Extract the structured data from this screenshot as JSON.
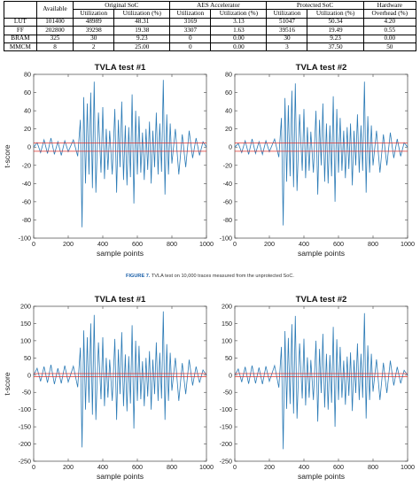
{
  "table": {
    "headers": {
      "available": "Available",
      "original": "Original SoC",
      "aes": "AES Accelerator",
      "protected": "Protected SoC",
      "hw_line1": "Hardware",
      "hw_line2": "Overhead (%)",
      "util": "Utilization",
      "util_pct": "Utilization (%)"
    },
    "rows": [
      {
        "label": "LUT",
        "cells": [
          "101400",
          "48989",
          "48.31",
          "3169",
          "3.13",
          "51047",
          "50.34",
          "4.20"
        ]
      },
      {
        "label": "FF",
        "cells": [
          "202800",
          "39298",
          "19.38",
          "3307",
          "1.63",
          "39516",
          "19.49",
          "0.55"
        ]
      },
      {
        "label": "BRAM",
        "cells": [
          "325",
          "30",
          "9.23",
          "0",
          "0.00",
          "30",
          "9.23",
          "0.00"
        ]
      },
      {
        "label": "MMCM",
        "cells": [
          "8",
          "2",
          "25.00",
          "0",
          "0.00",
          "3",
          "37.50",
          "50"
        ]
      }
    ]
  },
  "figure7": {
    "caption_label": "FIGURE 7.",
    "caption_text": "TVLA test on 10,000 traces measured from the unprotected SoC."
  },
  "colors": {
    "trace": "#2c7bb6",
    "threshold": "#e0302a"
  },
  "chart_data": [
    {
      "type": "line",
      "title": "TVLA test #1",
      "xlabel": "sample points",
      "ylabel": "t-score",
      "xlim": [
        0,
        1000
      ],
      "ylim": [
        -100,
        80
      ],
      "xticks": [
        0,
        200,
        400,
        600,
        800,
        1000
      ],
      "yticks": [
        80,
        60,
        40,
        20,
        0,
        -20,
        -40,
        -60,
        -80,
        -100
      ],
      "thresholds": [
        4.5,
        -4.5
      ],
      "series": [
        {
          "x": [
            0,
            20,
            40,
            60,
            80,
            100,
            120,
            140,
            160,
            180,
            200,
            230,
            255,
            270,
            280,
            290,
            300,
            310,
            320,
            330,
            340,
            350,
            360,
            375,
            390,
            400,
            410,
            420,
            430,
            440,
            455,
            470,
            480,
            490,
            500,
            510,
            520,
            530,
            540,
            550,
            560,
            570,
            580,
            590,
            600,
            610,
            620,
            630,
            640,
            650,
            660,
            670,
            680,
            690,
            700,
            710,
            720,
            730,
            740,
            750,
            760,
            770,
            780,
            790,
            800,
            820,
            840,
            860,
            880,
            900,
            920,
            940,
            960,
            980,
            1000
          ],
          "y": [
            0,
            5,
            -6,
            8,
            -7,
            10,
            -8,
            6,
            -9,
            7,
            -5,
            8,
            -10,
            30,
            -88,
            55,
            -40,
            48,
            -30,
            60,
            -45,
            72,
            -50,
            38,
            -28,
            44,
            -35,
            20,
            -25,
            18,
            -30,
            42,
            -50,
            30,
            -22,
            50,
            -36,
            24,
            -42,
            22,
            -33,
            58,
            -62,
            40,
            -30,
            34,
            -28,
            16,
            -36,
            20,
            -25,
            28,
            -40,
            18,
            -22,
            38,
            -30,
            26,
            -27,
            74,
            -52,
            36,
            -30,
            26,
            -18,
            20,
            -30,
            14,
            -22,
            18,
            -12,
            10,
            -9,
            6,
            0
          ]
        }
      ]
    },
    {
      "type": "line",
      "title": "TVLA test #2",
      "xlabel": "sample points",
      "ylabel": "",
      "xlim": [
        0,
        1000
      ],
      "ylim": [
        -100,
        80
      ],
      "xticks": [
        0,
        200,
        400,
        600,
        800,
        1000
      ],
      "yticks": [
        80,
        60,
        40,
        20,
        0,
        -20,
        -40,
        -60,
        -80,
        -100
      ],
      "thresholds": [
        4.5,
        -4.5
      ],
      "series": [
        {
          "x": [
            0,
            20,
            40,
            60,
            80,
            100,
            120,
            140,
            160,
            180,
            200,
            230,
            255,
            270,
            280,
            290,
            300,
            310,
            320,
            330,
            340,
            350,
            360,
            375,
            390,
            400,
            410,
            420,
            430,
            440,
            455,
            470,
            480,
            490,
            500,
            510,
            520,
            530,
            540,
            550,
            560,
            570,
            580,
            590,
            600,
            610,
            620,
            630,
            640,
            650,
            660,
            670,
            680,
            690,
            700,
            710,
            720,
            730,
            740,
            750,
            760,
            770,
            780,
            790,
            800,
            820,
            840,
            860,
            880,
            900,
            920,
            940,
            960,
            980,
            1000
          ],
          "y": [
            0,
            4,
            -6,
            7,
            -8,
            9,
            -7,
            6,
            -8,
            7,
            -5,
            9,
            -11,
            32,
            -86,
            54,
            -38,
            46,
            -32,
            62,
            -44,
            70,
            -48,
            36,
            -26,
            42,
            -34,
            22,
            -26,
            17,
            -28,
            40,
            -52,
            30,
            -20,
            48,
            -38,
            26,
            -40,
            24,
            -32,
            56,
            -60,
            42,
            -28,
            32,
            -26,
            18,
            -34,
            22,
            -24,
            26,
            -42,
            18,
            -20,
            36,
            -28,
            24,
            -26,
            72,
            -50,
            34,
            -28,
            24,
            -20,
            18,
            -28,
            14,
            -20,
            16,
            -12,
            9,
            -10,
            5,
            0
          ]
        }
      ]
    },
    {
      "type": "line",
      "title": "TVLA test #1",
      "xlabel": "sample points",
      "ylabel": "t-score",
      "xlim": [
        0,
        1000
      ],
      "ylim": [
        -250,
        200
      ],
      "xticks": [
        0,
        200,
        400,
        600,
        800,
        1000
      ],
      "yticks": [
        200,
        150,
        100,
        50,
        0,
        -50,
        -100,
        -150,
        -200,
        -250
      ],
      "thresholds": [
        4.5,
        -4.5
      ],
      "series": [
        {
          "x": [
            0,
            20,
            40,
            60,
            80,
            100,
            120,
            140,
            160,
            180,
            200,
            230,
            255,
            270,
            280,
            290,
            300,
            310,
            320,
            330,
            340,
            350,
            360,
            375,
            390,
            400,
            410,
            420,
            430,
            440,
            455,
            470,
            480,
            490,
            500,
            510,
            520,
            530,
            540,
            550,
            560,
            570,
            580,
            590,
            600,
            610,
            620,
            630,
            640,
            650,
            660,
            670,
            680,
            690,
            700,
            710,
            720,
            730,
            740,
            750,
            760,
            770,
            780,
            790,
            800,
            820,
            840,
            860,
            880,
            900,
            920,
            940,
            960,
            980,
            1000
          ],
          "y": [
            0,
            20,
            -18,
            25,
            -22,
            30,
            -26,
            20,
            -24,
            28,
            -20,
            26,
            -35,
            80,
            -210,
            130,
            -100,
            110,
            -80,
            150,
            -115,
            175,
            -130,
            95,
            -70,
            110,
            -90,
            50,
            -65,
            45,
            -75,
            105,
            -130,
            75,
            -55,
            125,
            -90,
            60,
            -105,
            55,
            -82,
            145,
            -155,
            100,
            -75,
            85,
            -70,
            40,
            -90,
            50,
            -62,
            70,
            -100,
            45,
            -55,
            95,
            -75,
            65,
            -68,
            185,
            -130,
            90,
            -75,
            65,
            -45,
            50,
            -75,
            35,
            -55,
            45,
            -30,
            25,
            -22,
            15,
            0
          ]
        }
      ]
    },
    {
      "type": "line",
      "title": "TVLA test #2",
      "xlabel": "sample points",
      "ylabel": "",
      "xlim": [
        0,
        1000
      ],
      "ylim": [
        -250,
        200
      ],
      "xticks": [
        0,
        200,
        400,
        600,
        800,
        1000
      ],
      "yticks": [
        200,
        150,
        100,
        50,
        0,
        -50,
        -100,
        -150,
        -200,
        -250
      ],
      "thresholds": [
        4.5,
        -4.5
      ],
      "series": [
        {
          "x": [
            0,
            20,
            40,
            60,
            80,
            100,
            120,
            140,
            160,
            180,
            200,
            230,
            255,
            270,
            280,
            290,
            300,
            310,
            320,
            330,
            340,
            350,
            360,
            375,
            390,
            400,
            410,
            420,
            430,
            440,
            455,
            470,
            480,
            490,
            500,
            510,
            520,
            530,
            540,
            550,
            560,
            570,
            580,
            590,
            600,
            610,
            620,
            630,
            640,
            650,
            660,
            670,
            680,
            690,
            700,
            710,
            720,
            730,
            740,
            750,
            760,
            770,
            780,
            790,
            800,
            820,
            840,
            860,
            880,
            900,
            920,
            940,
            960,
            980,
            1000
          ],
          "y": [
            0,
            18,
            -20,
            24,
            -25,
            28,
            -24,
            22,
            -26,
            26,
            -18,
            28,
            -36,
            82,
            -215,
            128,
            -98,
            108,
            -84,
            148,
            -112,
            172,
            -126,
            92,
            -68,
            106,
            -88,
            52,
            -66,
            44,
            -72,
            100,
            -135,
            76,
            -52,
            120,
            -94,
            62,
            -100,
            58,
            -80,
            140,
            -150,
            104,
            -72,
            82,
            -66,
            42,
            -86,
            54,
            -60,
            66,
            -104,
            44,
            -52,
            92,
            -72,
            62,
            -66,
            180,
            -126,
            86,
            -72,
            62,
            -48,
            46,
            -72,
            36,
            -52,
            42,
            -30,
            24,
            -24,
            14,
            0
          ]
        }
      ]
    }
  ]
}
